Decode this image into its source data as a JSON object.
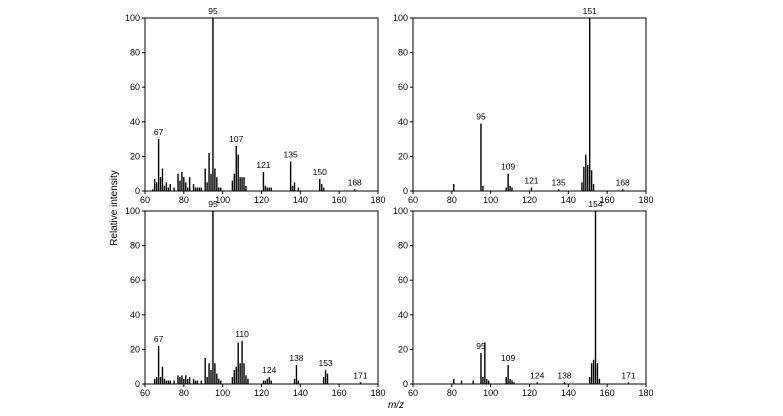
{
  "figure": {
    "ylabel": "Relative intensity",
    "xlabel": "m/z"
  },
  "chart_data": [
    {
      "type": "bar",
      "xlim": [
        60,
        180
      ],
      "ylim": [
        0,
        100
      ],
      "xticks": [
        60,
        80,
        100,
        120,
        140,
        160,
        180
      ],
      "yticks": [
        0,
        20,
        40,
        60,
        80,
        100
      ],
      "x": [
        64,
        65,
        66,
        67,
        68,
        69,
        70,
        71,
        72,
        73,
        75,
        77,
        78,
        79,
        80,
        81,
        82,
        83,
        85,
        86,
        87,
        88,
        89,
        91,
        92,
        93,
        94,
        95,
        96,
        97,
        98,
        99,
        105,
        106,
        107,
        108,
        109,
        110,
        111,
        112,
        121,
        122,
        123,
        124,
        125,
        135,
        136,
        137,
        139,
        150,
        151,
        152,
        168
      ],
      "values": [
        1,
        7,
        5,
        30,
        8,
        13,
        3,
        5,
        2,
        4,
        2,
        10,
        6,
        11,
        8,
        5,
        2,
        8,
        4,
        2,
        2,
        2,
        2,
        13,
        5,
        22,
        10,
        100,
        13,
        8,
        2,
        2,
        6,
        10,
        26,
        21,
        8,
        8,
        8,
        3,
        11,
        3,
        2,
        2,
        2,
        17,
        3,
        5,
        2,
        7,
        4,
        2,
        1
      ],
      "peak_labels": [
        {
          "x": 67,
          "label": "67"
        },
        {
          "x": 95,
          "label": "95"
        },
        {
          "x": 107,
          "label": "107"
        },
        {
          "x": 121,
          "label": "121"
        },
        {
          "x": 135,
          "label": "135"
        },
        {
          "x": 150,
          "label": "150"
        },
        {
          "x": 168,
          "label": "168"
        }
      ]
    },
    {
      "type": "bar",
      "xlim": [
        60,
        180
      ],
      "ylim": [
        0,
        100
      ],
      "xticks": [
        60,
        80,
        100,
        120,
        140,
        160,
        180
      ],
      "yticks": [
        0,
        20,
        40,
        60,
        80,
        100
      ],
      "x": [
        81,
        95,
        96,
        108,
        109,
        110,
        111,
        121,
        135,
        147,
        148,
        149,
        150,
        151,
        152,
        153,
        168
      ],
      "values": [
        4,
        39,
        3,
        2,
        10,
        3,
        2,
        2,
        1,
        5,
        14,
        21,
        15,
        100,
        12,
        4,
        1
      ],
      "peak_labels": [
        {
          "x": 95,
          "label": "95"
        },
        {
          "x": 109,
          "label": "109"
        },
        {
          "x": 121,
          "label": "121"
        },
        {
          "x": 135,
          "label": "135"
        },
        {
          "x": 151,
          "label": "151"
        },
        {
          "x": 168,
          "label": "168"
        }
      ]
    },
    {
      "type": "bar",
      "xlim": [
        60,
        180
      ],
      "ylim": [
        0,
        100
      ],
      "xticks": [
        60,
        80,
        100,
        120,
        140,
        160,
        180
      ],
      "yticks": [
        0,
        20,
        40,
        60,
        80,
        100
      ],
      "x": [
        65,
        66,
        67,
        68,
        69,
        70,
        71,
        72,
        73,
        75,
        77,
        78,
        79,
        80,
        81,
        82,
        83,
        85,
        86,
        87,
        89,
        91,
        92,
        93,
        94,
        95,
        96,
        97,
        98,
        99,
        105,
        106,
        107,
        108,
        109,
        110,
        111,
        112,
        113,
        121,
        122,
        123,
        124,
        125,
        137,
        138,
        139,
        152,
        153,
        154,
        171
      ],
      "values": [
        3,
        4,
        22,
        4,
        10,
        3,
        2,
        2,
        2,
        2,
        5,
        4,
        5,
        3,
        5,
        3,
        4,
        3,
        2,
        2,
        2,
        15,
        4,
        12,
        8,
        100,
        12,
        6,
        3,
        2,
        4,
        8,
        10,
        24,
        12,
        25,
        12,
        5,
        3,
        2,
        2,
        3,
        4,
        2,
        3,
        11,
        2,
        4,
        8,
        6,
        1
      ],
      "peak_labels": [
        {
          "x": 67,
          "label": "67"
        },
        {
          "x": 95,
          "label": "95"
        },
        {
          "x": 110,
          "label": "110"
        },
        {
          "x": 124,
          "label": "124"
        },
        {
          "x": 138,
          "label": "138"
        },
        {
          "x": 153,
          "label": "153"
        },
        {
          "x": 171,
          "label": "171"
        }
      ]
    },
    {
      "type": "bar",
      "xlim": [
        60,
        180
      ],
      "ylim": [
        0,
        100
      ],
      "xticks": [
        60,
        80,
        100,
        120,
        140,
        160,
        180
      ],
      "yticks": [
        0,
        20,
        40,
        60,
        80,
        100
      ],
      "x": [
        81,
        85,
        91,
        95,
        96,
        97,
        98,
        99,
        108,
        109,
        110,
        111,
        112,
        124,
        138,
        151,
        152,
        153,
        154,
        155,
        156,
        171
      ],
      "values": [
        3,
        2,
        2,
        18,
        4,
        24,
        3,
        2,
        4,
        11,
        3,
        2,
        1,
        1,
        1,
        4,
        12,
        14,
        100,
        12,
        3,
        1
      ],
      "peak_labels": [
        {
          "x": 95,
          "label": "95"
        },
        {
          "x": 109,
          "label": "109"
        },
        {
          "x": 124,
          "label": "124"
        },
        {
          "x": 138,
          "label": "138"
        },
        {
          "x": 154,
          "label": "154"
        },
        {
          "x": 171,
          "label": "171"
        }
      ]
    }
  ]
}
